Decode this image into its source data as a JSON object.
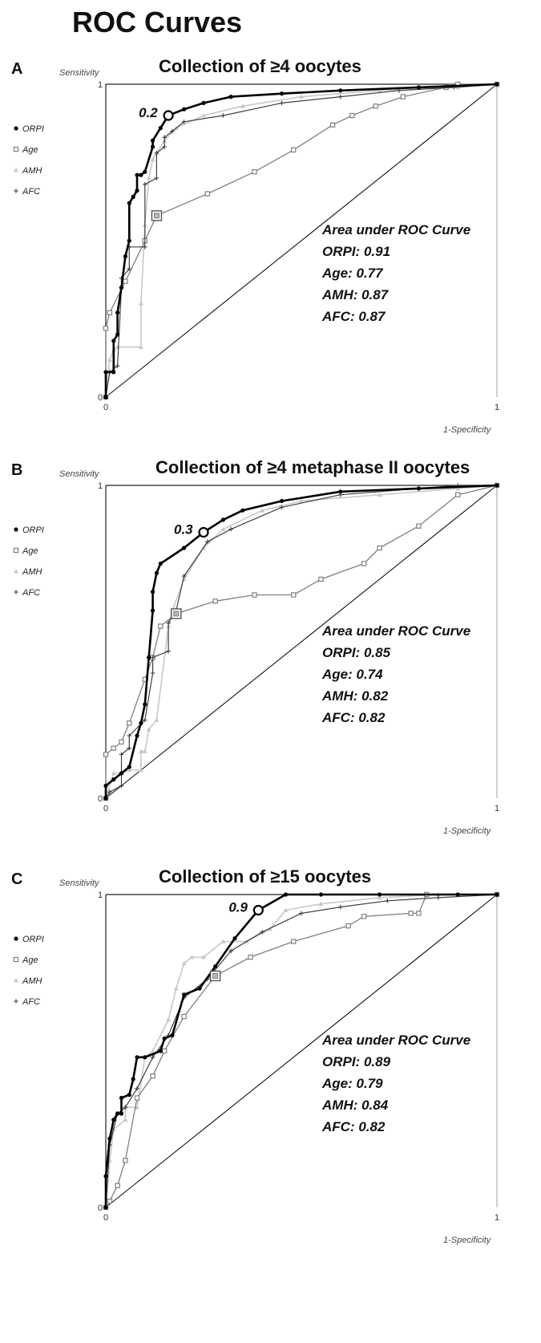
{
  "figure_title": "ROC Curves",
  "legend": [
    {
      "name": "ORPI",
      "marker": "filled-circle",
      "color": "#000000"
    },
    {
      "name": "Age",
      "marker": "open-square",
      "color": "#808080"
    },
    {
      "name": "AMH",
      "marker": "triangle",
      "color": "#c8c8c8"
    },
    {
      "name": "AFC",
      "marker": "plus",
      "color": "#404040"
    }
  ],
  "auc_heading": "Area under ROC Curve",
  "chart_data": [
    {
      "type": "line",
      "panel": "A",
      "title": "Collection of ≥4 oocytes",
      "xlabel": "1-Specificity",
      "ylabel": "Sensitivity",
      "xlim": [
        0,
        1
      ],
      "ylim": [
        0,
        1
      ],
      "tick_labels": {
        "x0": "0",
        "x1": "1",
        "y0": "0",
        "y1": "1"
      },
      "diagonal": true,
      "threshold": {
        "label": "0.2",
        "series": "ORPI",
        "x": 0.16,
        "y": 0.9
      },
      "highlight": {
        "series": "Age",
        "x": 0.13,
        "y": 0.58
      },
      "auc_lines": [
        "ORPI: 0.91",
        "Age: 0.77",
        "AMH: 0.87",
        "AFC: 0.87"
      ],
      "series": [
        {
          "name": "ORPI",
          "x": [
            0,
            0,
            0.02,
            0.02,
            0.03,
            0.03,
            0.04,
            0.05,
            0.06,
            0.06,
            0.07,
            0.08,
            0.08,
            0.09,
            0.1,
            0.12,
            0.12,
            0.14,
            0.16,
            0.2,
            0.25,
            0.32,
            0.45,
            0.6,
            0.8,
            1.0
          ],
          "y": [
            0,
            0.08,
            0.08,
            0.18,
            0.2,
            0.27,
            0.35,
            0.45,
            0.5,
            0.62,
            0.64,
            0.66,
            0.71,
            0.71,
            0.72,
            0.8,
            0.82,
            0.86,
            0.9,
            0.92,
            0.94,
            0.96,
            0.97,
            0.98,
            0.99,
            1.0
          ]
        },
        {
          "name": "Age",
          "x": [
            0,
            0,
            0.01,
            0.05,
            0.1,
            0.13,
            0.26,
            0.38,
            0.48,
            0.58,
            0.63,
            0.69,
            0.76,
            0.87,
            0.9,
            1.0
          ],
          "y": [
            0,
            0.22,
            0.27,
            0.37,
            0.5,
            0.58,
            0.65,
            0.72,
            0.79,
            0.87,
            0.9,
            0.93,
            0.96,
            0.99,
            1.0,
            1.0
          ]
        },
        {
          "name": "AMH",
          "x": [
            0,
            0.01,
            0.02,
            0.03,
            0.09,
            0.09,
            0.1,
            0.11,
            0.12,
            0.13,
            0.15,
            0.18,
            0.25,
            0.35,
            0.5,
            0.7,
            0.9,
            1.0
          ],
          "y": [
            0,
            0.12,
            0.15,
            0.16,
            0.16,
            0.3,
            0.55,
            0.7,
            0.76,
            0.78,
            0.82,
            0.86,
            0.9,
            0.93,
            0.96,
            0.98,
            0.99,
            1.0
          ]
        },
        {
          "name": "AFC",
          "x": [
            0,
            0.01,
            0.03,
            0.04,
            0.04,
            0.06,
            0.06,
            0.1,
            0.1,
            0.13,
            0.13,
            0.15,
            0.15,
            0.17,
            0.2,
            0.3,
            0.45,
            0.6,
            0.75,
            0.89,
            1.0
          ],
          "y": [
            0,
            0.08,
            0.1,
            0.35,
            0.38,
            0.41,
            0.48,
            0.48,
            0.68,
            0.7,
            0.78,
            0.8,
            0.83,
            0.85,
            0.88,
            0.9,
            0.94,
            0.96,
            0.98,
            0.99,
            1.0
          ]
        }
      ]
    },
    {
      "type": "line",
      "panel": "B",
      "title": "Collection of ≥4 metaphase II oocytes",
      "xlabel": "1-Specificity",
      "ylabel": "Sensitivity",
      "xlim": [
        0,
        1
      ],
      "ylim": [
        0,
        1
      ],
      "tick_labels": {
        "x0": "0",
        "x1": "1",
        "y0": "0",
        "y1": "1"
      },
      "diagonal": true,
      "threshold": {
        "label": "0.3",
        "series": "ORPI",
        "x": 0.25,
        "y": 0.85
      },
      "highlight": {
        "series": "Age",
        "x": 0.18,
        "y": 0.59
      },
      "auc_lines": [
        "ORPI: 0.85",
        "Age: 0.74",
        "AMH: 0.82",
        "AFC: 0.82"
      ],
      "series": [
        {
          "name": "ORPI",
          "x": [
            0,
            0,
            0.02,
            0.04,
            0.06,
            0.08,
            0.09,
            0.1,
            0.11,
            0.12,
            0.12,
            0.13,
            0.14,
            0.2,
            0.25,
            0.3,
            0.35,
            0.45,
            0.6,
            0.8,
            1.0
          ],
          "y": [
            0,
            0.04,
            0.06,
            0.08,
            0.1,
            0.2,
            0.24,
            0.3,
            0.45,
            0.6,
            0.66,
            0.72,
            0.75,
            0.8,
            0.85,
            0.89,
            0.92,
            0.95,
            0.98,
            0.99,
            1.0
          ]
        },
        {
          "name": "Age",
          "x": [
            0,
            0,
            0.02,
            0.04,
            0.06,
            0.1,
            0.12,
            0.14,
            0.18,
            0.28,
            0.38,
            0.48,
            0.55,
            0.66,
            0.7,
            0.8,
            0.9,
            1.0
          ],
          "y": [
            0,
            0.14,
            0.16,
            0.18,
            0.24,
            0.38,
            0.45,
            0.55,
            0.59,
            0.63,
            0.65,
            0.65,
            0.7,
            0.75,
            0.8,
            0.87,
            0.97,
            1.0
          ]
        },
        {
          "name": "AMH",
          "x": [
            0,
            0.02,
            0.04,
            0.06,
            0.09,
            0.09,
            0.1,
            0.11,
            0.13,
            0.16,
            0.17,
            0.2,
            0.25,
            0.3,
            0.4,
            0.5,
            0.7,
            0.9,
            1.0
          ],
          "y": [
            0,
            0.08,
            0.08,
            0.09,
            0.09,
            0.15,
            0.15,
            0.22,
            0.25,
            0.55,
            0.6,
            0.7,
            0.8,
            0.86,
            0.92,
            0.95,
            0.97,
            0.99,
            1.0
          ]
        },
        {
          "name": "AFC",
          "x": [
            0,
            0.01,
            0.04,
            0.04,
            0.06,
            0.06,
            0.1,
            0.12,
            0.12,
            0.16,
            0.16,
            0.18,
            0.2,
            0.26,
            0.32,
            0.45,
            0.6,
            0.8,
            0.9,
            1.0
          ],
          "y": [
            0,
            0.02,
            0.04,
            0.14,
            0.16,
            0.2,
            0.25,
            0.4,
            0.45,
            0.47,
            0.56,
            0.6,
            0.71,
            0.82,
            0.86,
            0.93,
            0.97,
            0.99,
            1.0,
            1.0
          ]
        }
      ]
    },
    {
      "type": "line",
      "panel": "C",
      "title": "Collection of ≥15 oocytes",
      "xlabel": "1-Specificity",
      "ylabel": "Sensitivity",
      "xlim": [
        0,
        1
      ],
      "ylim": [
        0,
        1
      ],
      "tick_labels": {
        "x0": "0",
        "x1": "1",
        "y0": "0",
        "y1": "1"
      },
      "diagonal": true,
      "threshold": {
        "label": "0.9",
        "series": "ORPI",
        "x": 0.39,
        "y": 0.95
      },
      "highlight": {
        "series": "Age",
        "x": 0.28,
        "y": 0.74
      },
      "auc_lines": [
        "ORPI: 0.89",
        "Age: 0.79",
        "AMH: 0.84",
        "AFC: 0.82"
      ],
      "series": [
        {
          "name": "ORPI",
          "x": [
            0,
            0,
            0.01,
            0.02,
            0.03,
            0.04,
            0.04,
            0.06,
            0.07,
            0.08,
            0.1,
            0.14,
            0.15,
            0.17,
            0.2,
            0.24,
            0.28,
            0.33,
            0.39,
            0.46,
            0.55,
            0.7,
            0.9,
            1.0
          ],
          "y": [
            0,
            0.1,
            0.22,
            0.28,
            0.3,
            0.3,
            0.35,
            0.36,
            0.41,
            0.48,
            0.48,
            0.5,
            0.54,
            0.55,
            0.68,
            0.7,
            0.77,
            0.86,
            0.95,
            1.0,
            1.0,
            1.0,
            1.0,
            1.0
          ]
        },
        {
          "name": "Age",
          "x": [
            0,
            0.01,
            0.03,
            0.05,
            0.08,
            0.12,
            0.15,
            0.2,
            0.28,
            0.37,
            0.48,
            0.62,
            0.66,
            0.78,
            0.8,
            0.82,
            1.0
          ],
          "y": [
            0,
            0.02,
            0.07,
            0.15,
            0.35,
            0.42,
            0.5,
            0.61,
            0.74,
            0.8,
            0.85,
            0.9,
            0.93,
            0.94,
            0.94,
            1.0,
            1.0
          ]
        },
        {
          "name": "AMH",
          "x": [
            0,
            0.01,
            0.02,
            0.05,
            0.05,
            0.08,
            0.1,
            0.12,
            0.16,
            0.18,
            0.2,
            0.22,
            0.25,
            0.3,
            0.36,
            0.42,
            0.46,
            0.55,
            0.7,
            0.85,
            1.0
          ],
          "y": [
            0,
            0.15,
            0.25,
            0.28,
            0.32,
            0.32,
            0.48,
            0.5,
            0.6,
            0.7,
            0.78,
            0.8,
            0.8,
            0.85,
            0.85,
            0.89,
            0.95,
            0.97,
            0.99,
            1.0,
            1.0
          ]
        },
        {
          "name": "AFC",
          "x": [
            0,
            0.01,
            0.03,
            0.05,
            0.08,
            0.12,
            0.16,
            0.2,
            0.26,
            0.32,
            0.4,
            0.5,
            0.6,
            0.72,
            0.85,
            1.0
          ],
          "y": [
            0,
            0.2,
            0.3,
            0.32,
            0.38,
            0.48,
            0.55,
            0.67,
            0.73,
            0.82,
            0.88,
            0.94,
            0.96,
            0.98,
            0.99,
            1.0
          ]
        }
      ]
    }
  ]
}
